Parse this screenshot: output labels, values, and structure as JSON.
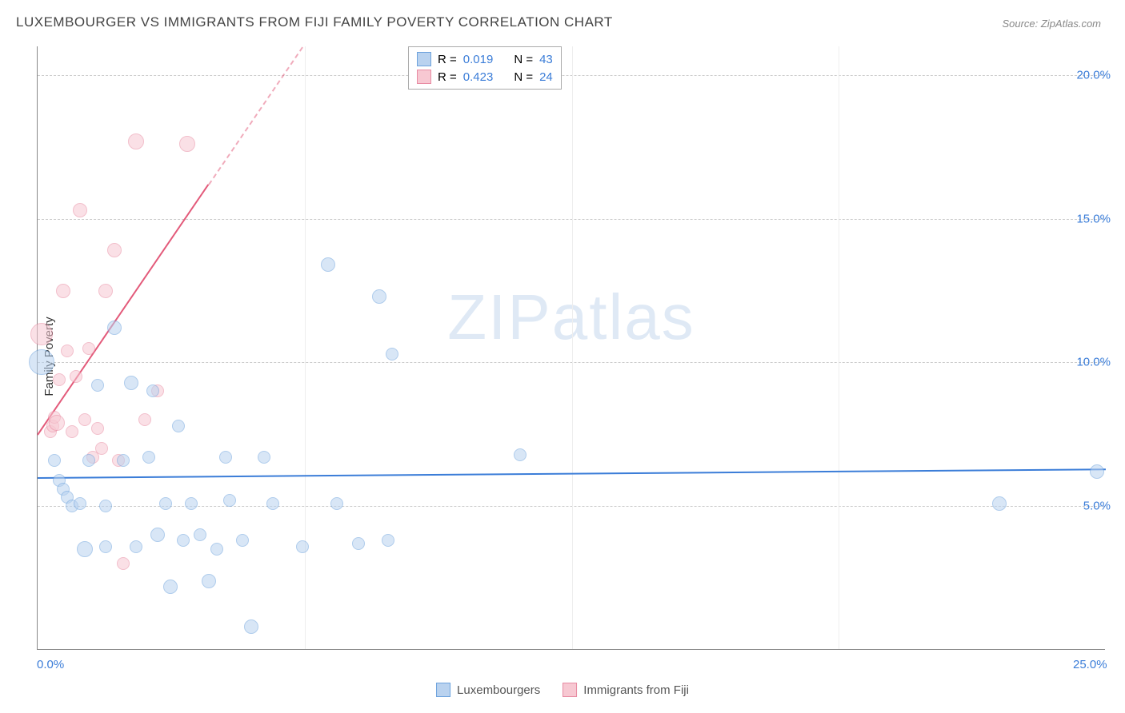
{
  "title": "LUXEMBOURGER VS IMMIGRANTS FROM FIJI FAMILY POVERTY CORRELATION CHART",
  "source": "Source: ZipAtlas.com",
  "watermark_a": "ZIP",
  "watermark_b": "atlas",
  "y_axis_label": "Family Poverty",
  "chart": {
    "type": "scatter",
    "xlim": [
      0,
      25
    ],
    "ylim": [
      0,
      21
    ],
    "y_ticks": [
      {
        "v": 5,
        "label": "5.0%"
      },
      {
        "v": 10,
        "label": "10.0%"
      },
      {
        "v": 15,
        "label": "15.0%"
      },
      {
        "v": 20,
        "label": "20.0%"
      }
    ],
    "x_ticks": [
      {
        "v": 0,
        "label": "0.0%"
      },
      {
        "v": 25,
        "label": "25.0%"
      }
    ],
    "x_gridlines": [
      6.25,
      12.5,
      18.75
    ],
    "background_color": "#ffffff",
    "grid_color": "#cccccc",
    "series": [
      {
        "name": "Luxembourgers",
        "fill": "#b9d2ef",
        "stroke": "#6ea3dd",
        "fill_opacity": 0.55,
        "trend_color": "#3b7dd8",
        "trend_y1": 6.0,
        "trend_y2": 6.3,
        "R": "0.019",
        "N": "43",
        "points": [
          {
            "x": 0.1,
            "y": 10.0,
            "r": 16
          },
          {
            "x": 0.4,
            "y": 6.6,
            "r": 8
          },
          {
            "x": 0.5,
            "y": 5.9,
            "r": 8
          },
          {
            "x": 0.6,
            "y": 5.6,
            "r": 8
          },
          {
            "x": 0.7,
            "y": 5.3,
            "r": 8
          },
          {
            "x": 0.8,
            "y": 5.0,
            "r": 8
          },
          {
            "x": 1.0,
            "y": 5.1,
            "r": 8
          },
          {
            "x": 1.1,
            "y": 3.5,
            "r": 10
          },
          {
            "x": 1.2,
            "y": 6.6,
            "r": 8
          },
          {
            "x": 1.4,
            "y": 9.2,
            "r": 8
          },
          {
            "x": 1.6,
            "y": 5.0,
            "r": 8
          },
          {
            "x": 1.6,
            "y": 3.6,
            "r": 8
          },
          {
            "x": 1.8,
            "y": 11.2,
            "r": 9
          },
          {
            "x": 2.0,
            "y": 6.6,
            "r": 8
          },
          {
            "x": 2.2,
            "y": 9.3,
            "r": 9
          },
          {
            "x": 2.3,
            "y": 3.6,
            "r": 8
          },
          {
            "x": 2.6,
            "y": 6.7,
            "r": 8
          },
          {
            "x": 2.7,
            "y": 9.0,
            "r": 8
          },
          {
            "x": 2.8,
            "y": 4.0,
            "r": 9
          },
          {
            "x": 3.0,
            "y": 5.1,
            "r": 8
          },
          {
            "x": 3.1,
            "y": 2.2,
            "r": 9
          },
          {
            "x": 3.3,
            "y": 7.8,
            "r": 8
          },
          {
            "x": 3.4,
            "y": 3.8,
            "r": 8
          },
          {
            "x": 3.6,
            "y": 5.1,
            "r": 8
          },
          {
            "x": 3.8,
            "y": 4.0,
            "r": 8
          },
          {
            "x": 4.0,
            "y": 2.4,
            "r": 9
          },
          {
            "x": 4.2,
            "y": 3.5,
            "r": 8
          },
          {
            "x": 4.4,
            "y": 6.7,
            "r": 8
          },
          {
            "x": 4.5,
            "y": 5.2,
            "r": 8
          },
          {
            "x": 4.8,
            "y": 3.8,
            "r": 8
          },
          {
            "x": 5.0,
            "y": 0.8,
            "r": 9
          },
          {
            "x": 5.3,
            "y": 6.7,
            "r": 8
          },
          {
            "x": 5.5,
            "y": 5.1,
            "r": 8
          },
          {
            "x": 6.2,
            "y": 3.6,
            "r": 8
          },
          {
            "x": 6.8,
            "y": 13.4,
            "r": 9
          },
          {
            "x": 7.0,
            "y": 5.1,
            "r": 8
          },
          {
            "x": 7.5,
            "y": 3.7,
            "r": 8
          },
          {
            "x": 8.0,
            "y": 12.3,
            "r": 9
          },
          {
            "x": 8.2,
            "y": 3.8,
            "r": 8
          },
          {
            "x": 8.3,
            "y": 10.3,
            "r": 8
          },
          {
            "x": 11.3,
            "y": 6.8,
            "r": 8
          },
          {
            "x": 22.5,
            "y": 5.1,
            "r": 9
          },
          {
            "x": 24.8,
            "y": 6.2,
            "r": 9
          }
        ]
      },
      {
        "name": "Immigrants from Fiji",
        "fill": "#f7c8d2",
        "stroke": "#e88ba2",
        "fill_opacity": 0.55,
        "trend_color": "#e35a7a",
        "trend_y1": 7.5,
        "trend_y2": 62,
        "dash_from_x": 4.0,
        "R": "0.423",
        "N": "24",
        "points": [
          {
            "x": 0.1,
            "y": 11.0,
            "r": 14
          },
          {
            "x": 0.3,
            "y": 7.6,
            "r": 8
          },
          {
            "x": 0.35,
            "y": 7.8,
            "r": 8
          },
          {
            "x": 0.4,
            "y": 8.1,
            "r": 8
          },
          {
            "x": 0.45,
            "y": 7.9,
            "r": 10
          },
          {
            "x": 0.5,
            "y": 9.4,
            "r": 8
          },
          {
            "x": 0.6,
            "y": 12.5,
            "r": 9
          },
          {
            "x": 0.7,
            "y": 10.4,
            "r": 8
          },
          {
            "x": 0.8,
            "y": 7.6,
            "r": 8
          },
          {
            "x": 0.9,
            "y": 9.5,
            "r": 8
          },
          {
            "x": 1.0,
            "y": 15.3,
            "r": 9
          },
          {
            "x": 1.1,
            "y": 8.0,
            "r": 8
          },
          {
            "x": 1.2,
            "y": 10.5,
            "r": 8
          },
          {
            "x": 1.3,
            "y": 6.7,
            "r": 8
          },
          {
            "x": 1.4,
            "y": 7.7,
            "r": 8
          },
          {
            "x": 1.6,
            "y": 12.5,
            "r": 9
          },
          {
            "x": 1.8,
            "y": 13.9,
            "r": 9
          },
          {
            "x": 1.9,
            "y": 6.6,
            "r": 8
          },
          {
            "x": 2.0,
            "y": 3.0,
            "r": 8
          },
          {
            "x": 2.3,
            "y": 17.7,
            "r": 10
          },
          {
            "x": 2.5,
            "y": 8.0,
            "r": 8
          },
          {
            "x": 2.8,
            "y": 9.0,
            "r": 8
          },
          {
            "x": 3.5,
            "y": 17.6,
            "r": 10
          },
          {
            "x": 1.5,
            "y": 7.0,
            "r": 8
          }
        ]
      }
    ]
  },
  "legend_top": {
    "r_label": "R =",
    "n_label": "N ="
  },
  "legend_bottom": [
    {
      "swatch_fill": "#b9d2ef",
      "swatch_stroke": "#6ea3dd"
    },
    {
      "swatch_fill": "#f7c8d2",
      "swatch_stroke": "#e88ba2"
    }
  ]
}
